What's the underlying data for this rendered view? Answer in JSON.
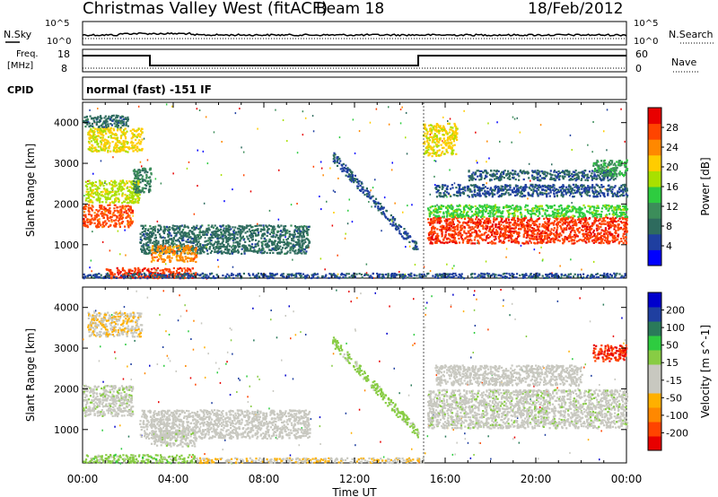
{
  "header": {
    "title": "Christmas Valley West (fitACF)",
    "beam": "Beam 18",
    "date": "18/Feb/2012"
  },
  "noise_panel": {
    "left_label": "N.Sky",
    "right_label": "N.Search",
    "left_ticks": [
      "10^5",
      "10^0"
    ],
    "right_ticks": [
      "10^5",
      "10^0"
    ]
  },
  "freq_panel": {
    "left_label_line1": "Freq.",
    "left_label_line2": "[MHz]",
    "right_label": "Nave",
    "left_ticks": [
      "18",
      "8"
    ],
    "right_ticks": [
      "60",
      "0"
    ]
  },
  "cpid": {
    "label": "CPID",
    "text": "normal (fast) -151 IF"
  },
  "x_axis": {
    "label": "Time UT",
    "ticks": [
      "00:00",
      "04:00",
      "08:00",
      "12:00",
      "16:00",
      "20:00",
      "00:00"
    ]
  },
  "colors": {
    "power": [
      "#0000ff",
      "#1f3fa0",
      "#2e6b5e",
      "#3c8d5a",
      "#2ecc40",
      "#a8e000",
      "#ffcc00",
      "#ff8800",
      "#ff4400",
      "#e80000"
    ],
    "velocity": [
      "#e80000",
      "#ff4400",
      "#ff8800",
      "#ffb000",
      "#c8c8c0",
      "#c8c8c0",
      "#88cc44",
      "#2ecc40",
      "#2a7a5a",
      "#1f3fa0",
      "#0000cc"
    ],
    "ground": "#c8c8c0"
  },
  "chart_data": [
    {
      "type": "heatmap",
      "title": "Power",
      "ylabel": "Slant Range [km]",
      "xlabel": "",
      "x_range_hours": [
        0,
        24
      ],
      "ylim": [
        180,
        4500
      ],
      "y_ticks": [
        1000,
        2000,
        3000,
        4000
      ],
      "colorbar": {
        "label": "Power [dB]",
        "range": [
          0,
          32
        ],
        "ticks": [
          4,
          8,
          12,
          16,
          20,
          24,
          28
        ]
      },
      "regions": [
        {
          "t": [
            0.0,
            2.2
          ],
          "r": [
            1450,
            2000
          ],
          "value": 27
        },
        {
          "t": [
            0.1,
            2.5
          ],
          "r": [
            2050,
            2600
          ],
          "value": 18
        },
        {
          "t": [
            2.2,
            3.0
          ],
          "r": [
            2300,
            2900
          ],
          "value": 10
        },
        {
          "t": [
            0.2,
            2.6
          ],
          "r": [
            3300,
            3900
          ],
          "value": 20
        },
        {
          "t": [
            0.0,
            2.0
          ],
          "r": [
            3900,
            4200
          ],
          "value": 8
        },
        {
          "t": [
            2.5,
            10.0
          ],
          "r": [
            800,
            1500
          ],
          "value": 8
        },
        {
          "t": [
            3.0,
            5.0
          ],
          "r": [
            600,
            1000
          ],
          "value": 24
        },
        {
          "t": [
            1.0,
            5.0
          ],
          "r": [
            200,
            450
          ],
          "value": 28
        },
        {
          "t": [
            0.0,
            24.0
          ],
          "r": [
            200,
            320
          ],
          "value": 6
        },
        {
          "t": [
            15.2,
            24.0
          ],
          "r": [
            1050,
            1700
          ],
          "value": 28
        },
        {
          "t": [
            15.2,
            24.0
          ],
          "r": [
            1700,
            2000
          ],
          "value": 15
        },
        {
          "t": [
            15.5,
            24.0
          ],
          "r": [
            2200,
            2500
          ],
          "value": 6
        },
        {
          "t": [
            17.0,
            23.5
          ],
          "r": [
            2600,
            2850
          ],
          "value": 7
        },
        {
          "t": [
            15.0,
            16.5
          ],
          "r": [
            3200,
            4000
          ],
          "value": 20
        },
        {
          "t": [
            22.5,
            24.0
          ],
          "r": [
            2700,
            3100
          ],
          "value": 12
        }
      ],
      "arc": {
        "t": [
          11.0,
          14.8
        ],
        "r_start": 3200,
        "r_end": 900,
        "value": 6
      }
    },
    {
      "type": "heatmap",
      "title": "Velocity",
      "ylabel": "Slant Range [km]",
      "xlabel": "Time UT",
      "x_range_hours": [
        0,
        24
      ],
      "ylim": [
        180,
        4500
      ],
      "y_ticks": [
        1000,
        2000,
        3000,
        4000
      ],
      "colorbar": {
        "label": "Velocity [m s^-1]",
        "range": [
          -250,
          250
        ],
        "ticks": [
          200,
          100,
          50,
          15,
          -15,
          -50,
          -100,
          -200
        ]
      },
      "regions": [
        {
          "t": [
            0.0,
            2.2
          ],
          "r": [
            1350,
            2100
          ],
          "value": 0
        },
        {
          "t": [
            2.5,
            10.0
          ],
          "r": [
            800,
            1500
          ],
          "value": -20
        },
        {
          "t": [
            3.0,
            5.0
          ],
          "r": [
            600,
            1000
          ],
          "value": 0
        },
        {
          "t": [
            0.0,
            5.0
          ],
          "r": [
            200,
            400
          ],
          "value": 40
        },
        {
          "t": [
            5.0,
            15.0
          ],
          "r": [
            200,
            320
          ],
          "value": -60
        },
        {
          "t": [
            15.2,
            24.0
          ],
          "r": [
            1050,
            2000
          ],
          "value": 0
        },
        {
          "t": [
            15.5,
            22.0
          ],
          "r": [
            2100,
            2600
          ],
          "value": -30
        },
        {
          "t": [
            0.2,
            2.6
          ],
          "r": [
            3300,
            3900
          ],
          "value": -60
        },
        {
          "t": [
            22.5,
            24.0
          ],
          "r": [
            2700,
            3100
          ],
          "value": -200
        }
      ],
      "arc": {
        "t": [
          11.0,
          14.8
        ],
        "r_start": 3200,
        "r_end": 900,
        "value": 40
      }
    }
  ]
}
